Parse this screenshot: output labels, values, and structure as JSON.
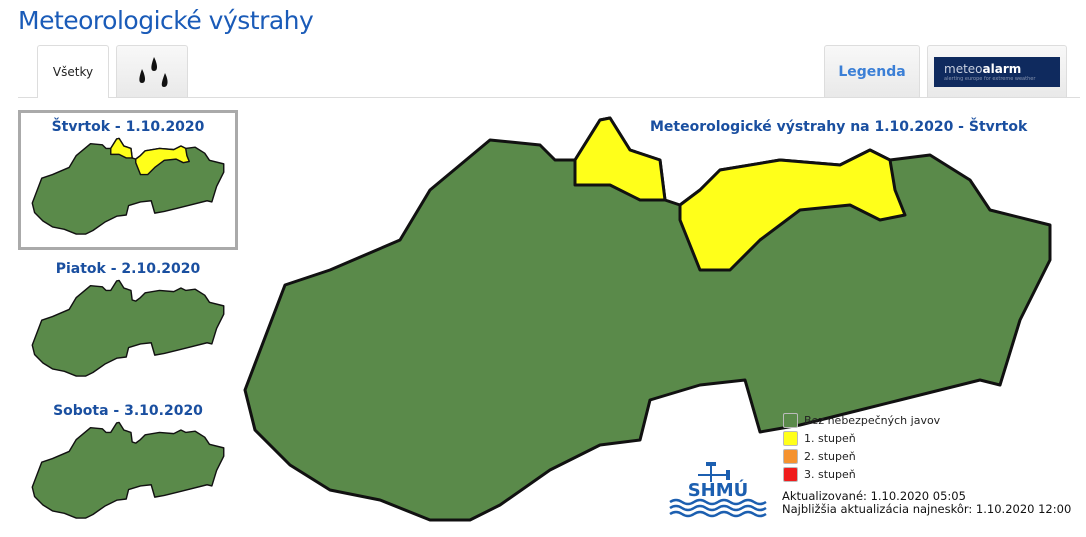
{
  "header": {
    "title": "Meteorologické výstrahy"
  },
  "tabs": [
    {
      "label": "Všetky",
      "active": true
    },
    {
      "icon": "rain-drops-icon"
    },
    {
      "label": "Legenda"
    },
    {
      "logo": "meteoalarm",
      "text_main": "meteo",
      "text_bold": "alarm",
      "tagline": "alerting europe for extreme weather"
    }
  ],
  "days": [
    {
      "label": "Štvrtok - 1.10.2020",
      "selected": true,
      "warnings": true
    },
    {
      "label": "Piatok - 2.10.2020",
      "warnings": false
    },
    {
      "label": "Sobota - 3.10.2020",
      "warnings": false
    }
  ],
  "map": {
    "title": "Meteorologické výstrahy na 1.10.2020 - Štvrtok"
  },
  "legend": [
    {
      "label": "Bez nebezpečných javov",
      "color": "#5a8a4a"
    },
    {
      "label": "1. stupeň",
      "color": "#ffff1a"
    },
    {
      "label": "2. stupeň",
      "color": "#f5922f"
    },
    {
      "label": "3. stupeň",
      "color": "#f01c1c"
    }
  ],
  "logo": "SHMÚ",
  "info": {
    "updated": "Aktualizované: 1.10.2020 05:05",
    "next": "Najbližšia aktualizácia najneskôr: 1.10.2020 12:00"
  }
}
